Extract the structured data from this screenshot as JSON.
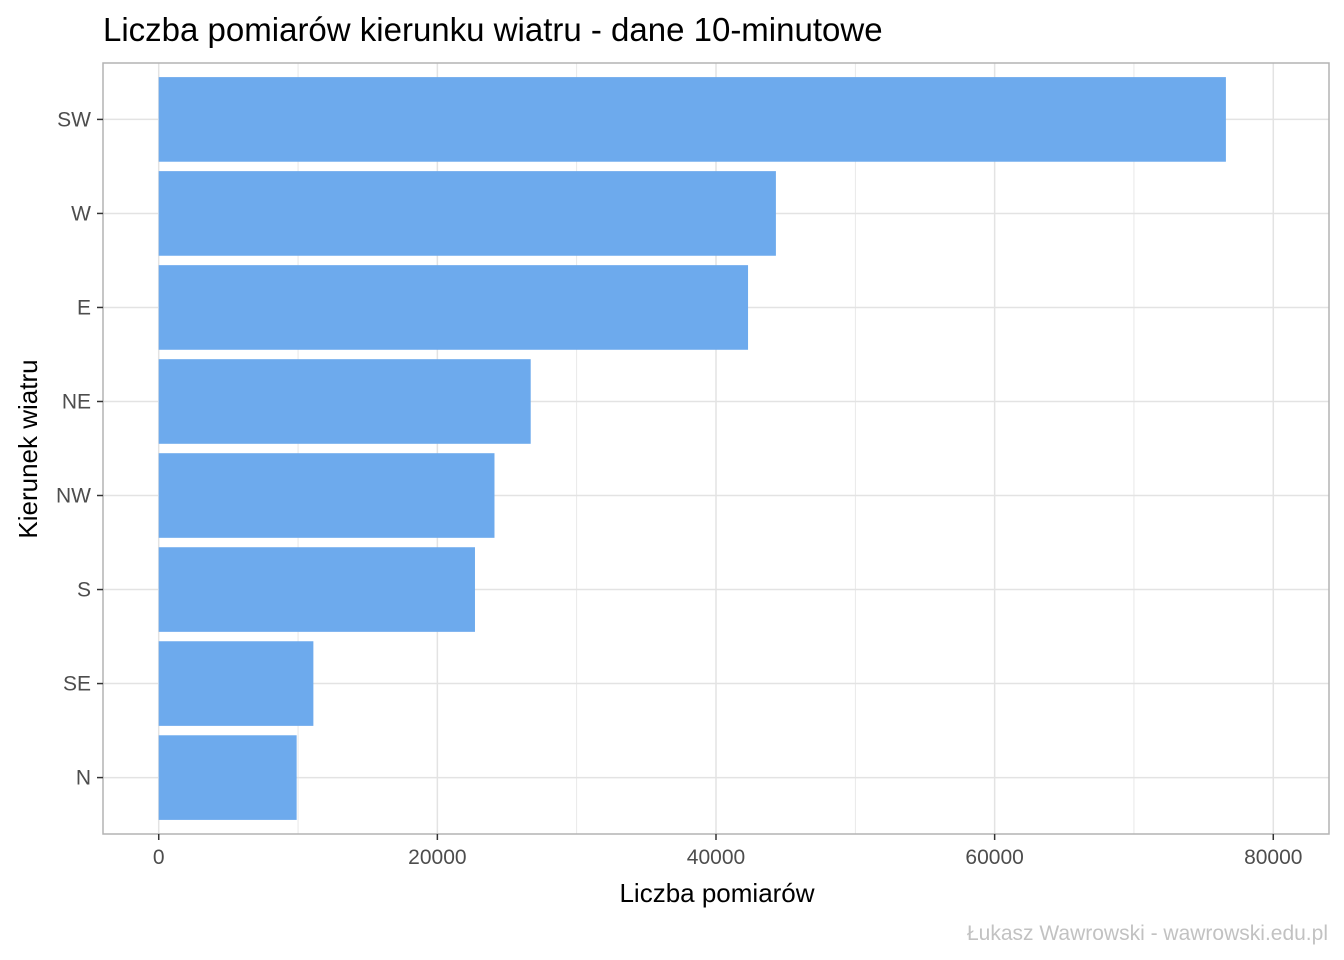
{
  "chart_data": {
    "type": "bar",
    "orientation": "horizontal",
    "title": "Liczba pomiarów kierunku wiatru - dane 10-minutowe",
    "xlabel": "Liczba pomiarów",
    "ylabel": "Kierunek wiatru",
    "caption": "Łukasz Wawrowski - wawrowski.edu.pl",
    "categories": [
      "SW",
      "W",
      "E",
      "NE",
      "NW",
      "S",
      "SE",
      "N"
    ],
    "values": [
      76600,
      44300,
      42300,
      26700,
      24100,
      22700,
      11100,
      9900
    ],
    "xlim": [
      -4000,
      84000
    ],
    "xticks": [
      0,
      20000,
      40000,
      60000,
      80000
    ],
    "xtick_labels": [
      "0",
      "20000",
      "40000",
      "60000",
      "80000"
    ],
    "grid": true,
    "colors": {
      "bar": "#6daaed",
      "grid": "#e3e3e3",
      "panel_border": "#b3b3b3",
      "tick_text": "#4d4d4d",
      "caption": "#c2c2c2"
    }
  }
}
